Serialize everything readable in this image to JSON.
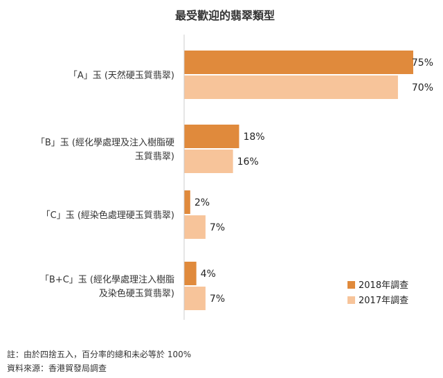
{
  "chart_data": {
    "type": "bar",
    "orientation": "horizontal",
    "title": "最受歡迎的翡翠類型",
    "categories": [
      [
        "「A」玉 (天然硬玉質翡翠)"
      ],
      [
        "「B」玉 (經化學處理及注入樹脂硬",
        "玉質翡翠)"
      ],
      [
        "「C」玉 (經染色處理硬玉質翡翠)"
      ],
      [
        "「B+C」玉 (經化學處理注入樹脂",
        "及染色硬玉質翡翠)"
      ]
    ],
    "series": [
      {
        "name": "2018年調查",
        "values": [
          75,
          18,
          2,
          4
        ],
        "labels": [
          "75%",
          "18%",
          "2%",
          "4%"
        ],
        "color": "#E08A3C"
      },
      {
        "name": "2017年調查",
        "values": [
          70,
          16,
          7,
          7
        ],
        "labels": [
          "70%",
          "16%",
          "7%",
          "7%"
        ],
        "color": "#F7C49A"
      }
    ],
    "xlim": [
      0,
      75
    ],
    "grid": false,
    "legend_position": "bottom-right"
  },
  "notes": {
    "footnote": "註：由於四捨五入，百分率的總和未必等於 100%",
    "source": "資料來源：香港貿發局調查"
  }
}
